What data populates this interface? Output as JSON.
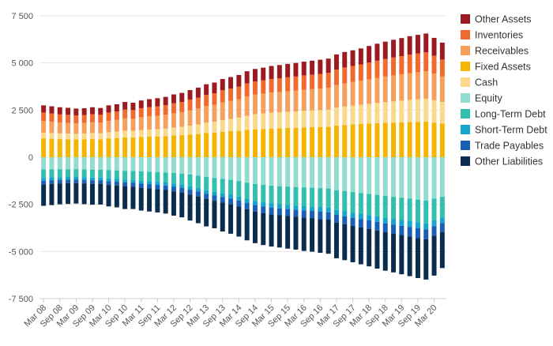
{
  "chart_data": {
    "type": "bar",
    "stacked": true,
    "grid": "horizontal",
    "legend_position": "right",
    "ylim": [
      -7500,
      7500
    ],
    "yticks": [
      7500,
      5000,
      2500,
      0,
      -2500,
      -5000,
      -7500
    ],
    "ytick_labels": [
      "7 500",
      "5 000",
      "2 500",
      "0",
      "-2 500",
      "-5 000",
      "-7 500"
    ],
    "xtick_labels": [
      "Mar 08",
      "Sep 08",
      "Mar 09",
      "Sep 09",
      "Mar 10",
      "Sep 10",
      "Mar 11",
      "Sep 11",
      "Mar 12",
      "Sep 12",
      "Mar 13",
      "Sep 13",
      "Mar 14",
      "Sep 14",
      "Mar 15",
      "Sep 15",
      "Mar 16",
      "Sep 16",
      "Mar 17",
      "Sep 17",
      "Mar 18",
      "Sep 18",
      "Mar 19",
      "Sep 19",
      "Mar 20"
    ],
    "categories": [
      "Mar 08",
      "Jun 08",
      "Sep 08",
      "Dec 08",
      "Mar 09",
      "Jun 09",
      "Sep 09",
      "Dec 09",
      "Mar 10",
      "Jun 10",
      "Sep 10",
      "Dec 10",
      "Mar 11",
      "Jun 11",
      "Sep 11",
      "Dec 11",
      "Mar 12",
      "Jun 12",
      "Sep 12",
      "Dec 12",
      "Mar 13",
      "Jun 13",
      "Sep 13",
      "Dec 13",
      "Mar 14",
      "Jun 14",
      "Sep 14",
      "Dec 14",
      "Mar 15",
      "Jun 15",
      "Sep 15",
      "Dec 15",
      "Mar 16",
      "Jun 16",
      "Sep 16",
      "Dec 16",
      "Mar 17",
      "Jun 17",
      "Sep 17",
      "Dec 17",
      "Mar 18",
      "Jun 18",
      "Sep 18",
      "Dec 18",
      "Mar 19",
      "Jun 19",
      "Sep 19",
      "Dec 19",
      "Mar 20",
      "Jun 20"
    ],
    "assets": [
      "Fixed Assets",
      "Cash",
      "Receivables",
      "Inventories",
      "Other Assets"
    ],
    "liabilities": [
      "Equity",
      "Long-Term Debt",
      "Short-Term Debt",
      "Trade Payables",
      "Other Liabilities"
    ],
    "legend_order": [
      "Other Assets",
      "Inventories",
      "Receivables",
      "Fixed Assets",
      "Cash",
      "Equity",
      "Long-Term Debt",
      "Short-Term Debt",
      "Trade Payables",
      "Other Liabilities"
    ],
    "colors": {
      "Other Assets": "#9b1b20",
      "Inventories": "#f06a2e",
      "Receivables": "#f5a05c",
      "Fixed Assets": "#f4b400",
      "Cash": "#fad98c",
      "Equity": "#93dcd2",
      "Long-Term Debt": "#33bfae",
      "Short-Term Debt": "#16a6c9",
      "Trade Payables": "#1a5fb4",
      "Other Liabilities": "#0a2d4f"
    },
    "series": [
      {
        "name": "Other Assets",
        "values": [
          380,
          380,
          380,
          370,
          360,
          360,
          370,
          360,
          380,
          380,
          400,
          390,
          410,
          420,
          430,
          440,
          470,
          480,
          510,
          530,
          560,
          570,
          600,
          610,
          620,
          650,
          660,
          670,
          690,
          700,
          710,
          720,
          730,
          740,
          750,
          760,
          800,
          820,
          830,
          850,
          880,
          900,
          920,
          940,
          960,
          980,
          990,
          1000,
          950,
          900
        ]
      },
      {
        "name": "Inventories",
        "values": [
          450,
          440,
          430,
          430,
          420,
          420,
          430,
          420,
          440,
          450,
          470,
          460,
          480,
          490,
          500,
          510,
          530,
          540,
          560,
          580,
          600,
          610,
          640,
          650,
          660,
          690,
          700,
          710,
          720,
          730,
          740,
          750,
          760,
          770,
          780,
          790,
          820,
          840,
          850,
          870,
          890,
          910,
          930,
          950,
          960,
          980,
          990,
          1000,
          950,
          900
        ]
      },
      {
        "name": "Receivables",
        "values": [
          620,
          600,
          580,
          570,
          560,
          560,
          570,
          560,
          600,
          620,
          650,
          640,
          680,
          700,
          710,
          730,
          760,
          780,
          820,
          850,
          880,
          900,
          940,
          960,
          980,
          1020,
          1040,
          1050,
          1070,
          1080,
          1090,
          1100,
          1120,
          1130,
          1140,
          1160,
          1200,
          1230,
          1250,
          1270,
          1300,
          1330,
          1360,
          1380,
          1400,
          1420,
          1440,
          1460,
          1400,
          1350
        ]
      },
      {
        "name": "Fixed Assets",
        "values": [
          1000,
          980,
          960,
          950,
          940,
          950,
          960,
          950,
          1000,
          1020,
          1050,
          1040,
          1070,
          1090,
          1100,
          1120,
          1150,
          1170,
          1200,
          1230,
          1280,
          1300,
          1350,
          1380,
          1400,
          1450,
          1480,
          1500,
          1520,
          1530,
          1550,
          1560,
          1580,
          1590,
          1600,
          1610,
          1680,
          1710,
          1740,
          1760,
          1780,
          1800,
          1820,
          1830,
          1850,
          1860,
          1870,
          1880,
          1830,
          1780
        ]
      },
      {
        "name": "Cash",
        "values": [
          300,
          300,
          300,
          300,
          300,
          310,
          320,
          320,
          330,
          340,
          360,
          360,
          370,
          380,
          390,
          400,
          420,
          440,
          470,
          500,
          550,
          580,
          620,
          650,
          700,
          750,
          800,
          820,
          840,
          850,
          860,
          870,
          880,
          890,
          900,
          910,
          950,
          980,
          1000,
          1020,
          1050,
          1080,
          1100,
          1130,
          1150,
          1180,
          1200,
          1220,
          1200,
          1150
        ]
      },
      {
        "name": "Equity",
        "values": [
          -650,
          -640,
          -640,
          -640,
          -640,
          -650,
          -660,
          -660,
          -680,
          -700,
          -720,
          -730,
          -750,
          -770,
          -790,
          -810,
          -840,
          -870,
          -920,
          -980,
          -1050,
          -1100,
          -1150,
          -1200,
          -1270,
          -1350,
          -1420,
          -1470,
          -1510,
          -1540,
          -1560,
          -1580,
          -1600,
          -1620,
          -1640,
          -1660,
          -1750,
          -1800,
          -1850,
          -1900,
          -1950,
          -2000,
          -2050,
          -2100,
          -2150,
          -2200,
          -2250,
          -2300,
          -2200,
          -2100
        ]
      },
      {
        "name": "Long-Term Debt",
        "values": [
          -450,
          -430,
          -420,
          -410,
          -400,
          -410,
          -420,
          -420,
          -440,
          -450,
          -470,
          -470,
          -490,
          -500,
          -520,
          -530,
          -560,
          -580,
          -620,
          -650,
          -700,
          -730,
          -760,
          -790,
          -820,
          -870,
          -900,
          -920,
          -940,
          -950,
          -960,
          -970,
          -980,
          -990,
          -1000,
          -1010,
          -1050,
          -1070,
          -1090,
          -1100,
          -1120,
          -1140,
          -1160,
          -1170,
          -1180,
          -1190,
          -1200,
          -1210,
          -1150,
          -1100
        ]
      },
      {
        "name": "Short-Term Debt",
        "values": [
          -150,
          -150,
          -140,
          -140,
          -140,
          -140,
          -140,
          -140,
          -150,
          -150,
          -150,
          -150,
          -160,
          -160,
          -160,
          -170,
          -170,
          -170,
          -180,
          -180,
          -190,
          -190,
          -200,
          -200,
          -210,
          -210,
          -220,
          -220,
          -230,
          -230,
          -230,
          -240,
          -240,
          -240,
          -250,
          -250,
          -260,
          -270,
          -270,
          -280,
          -280,
          -290,
          -300,
          -300,
          -310,
          -310,
          -320,
          -320,
          -310,
          -300
        ]
      },
      {
        "name": "Trade Payables",
        "values": [
          -200,
          -200,
          -190,
          -190,
          -190,
          -190,
          -190,
          -190,
          -200,
          -200,
          -210,
          -210,
          -220,
          -220,
          -230,
          -230,
          -240,
          -250,
          -260,
          -270,
          -280,
          -290,
          -300,
          -310,
          -320,
          -330,
          -340,
          -350,
          -360,
          -360,
          -370,
          -370,
          -380,
          -380,
          -390,
          -390,
          -410,
          -420,
          -430,
          -440,
          -450,
          -460,
          -470,
          -480,
          -490,
          -500,
          -510,
          -520,
          -500,
          -480
        ]
      },
      {
        "name": "Other Liabilities",
        "values": [
          -1130,
          -1120,
          -1110,
          -1100,
          -1090,
          -1100,
          -1110,
          -1100,
          -1140,
          -1160,
          -1200,
          -1190,
          -1210,
          -1230,
          -1230,
          -1250,
          -1290,
          -1320,
          -1380,
          -1420,
          -1450,
          -1460,
          -1530,
          -1560,
          -1590,
          -1650,
          -1680,
          -1700,
          -1700,
          -1710,
          -1730,
          -1740,
          -1770,
          -1780,
          -1790,
          -1810,
          -1890,
          -1900,
          -1930,
          -1960,
          -1990,
          -2020,
          -2040,
          -2060,
          -2080,
          -2110,
          -2130,
          -2140,
          -2120,
          -1900
        ]
      }
    ]
  }
}
